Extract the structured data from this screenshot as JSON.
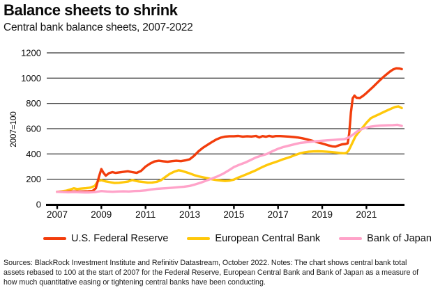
{
  "header": {
    "title": "Balance sheets to shrink",
    "subtitle": "Central bank balance sheets, 2007-2022"
  },
  "chart_data": {
    "type": "line",
    "title": "Balance sheets to shrink",
    "subtitle": "Central bank balance sheets, 2007-2022",
    "xlabel": "",
    "ylabel": "2007=100",
    "ylim": [
      0,
      1200
    ],
    "xlim": [
      2006.6,
      2022.75
    ],
    "yticks": [
      0,
      200,
      400,
      600,
      800,
      1000,
      1200
    ],
    "xticks": [
      2007,
      2009,
      2011,
      2013,
      2015,
      2017,
      2019,
      2021
    ],
    "grid": true,
    "legend_position": "bottom",
    "series": [
      {
        "name": "U.S. Federal Reserve",
        "color": "#f23d0c",
        "points": [
          [
            2007.0,
            100
          ],
          [
            2007.2,
            101
          ],
          [
            2007.4,
            100
          ],
          [
            2007.6,
            102
          ],
          [
            2007.8,
            103
          ],
          [
            2008.0,
            102
          ],
          [
            2008.2,
            103
          ],
          [
            2008.4,
            104
          ],
          [
            2008.6,
            107
          ],
          [
            2008.75,
            128
          ],
          [
            2008.9,
            225
          ],
          [
            2009.0,
            280
          ],
          [
            2009.1,
            250
          ],
          [
            2009.2,
            228
          ],
          [
            2009.35,
            248
          ],
          [
            2009.5,
            256
          ],
          [
            2009.65,
            250
          ],
          [
            2009.8,
            254
          ],
          [
            2010.0,
            258
          ],
          [
            2010.2,
            263
          ],
          [
            2010.4,
            256
          ],
          [
            2010.6,
            250
          ],
          [
            2010.8,
            266
          ],
          [
            2011.0,
            300
          ],
          [
            2011.2,
            323
          ],
          [
            2011.4,
            340
          ],
          [
            2011.6,
            346
          ],
          [
            2011.8,
            342
          ],
          [
            2012.0,
            338
          ],
          [
            2012.2,
            343
          ],
          [
            2012.4,
            346
          ],
          [
            2012.6,
            343
          ],
          [
            2012.8,
            349
          ],
          [
            2013.0,
            358
          ],
          [
            2013.2,
            386
          ],
          [
            2013.4,
            421
          ],
          [
            2013.6,
            449
          ],
          [
            2013.8,
            472
          ],
          [
            2014.0,
            494
          ],
          [
            2014.2,
            514
          ],
          [
            2014.4,
            529
          ],
          [
            2014.6,
            537
          ],
          [
            2014.8,
            540
          ],
          [
            2015.0,
            540
          ],
          [
            2015.2,
            542
          ],
          [
            2015.4,
            537
          ],
          [
            2015.6,
            540
          ],
          [
            2015.8,
            538
          ],
          [
            2016.0,
            542
          ],
          [
            2016.15,
            531
          ],
          [
            2016.3,
            541
          ],
          [
            2016.45,
            536
          ],
          [
            2016.6,
            543
          ],
          [
            2016.75,
            537
          ],
          [
            2016.9,
            541
          ],
          [
            2017.1,
            541
          ],
          [
            2017.3,
            539
          ],
          [
            2017.5,
            537
          ],
          [
            2017.7,
            534
          ],
          [
            2017.9,
            530
          ],
          [
            2018.1,
            524
          ],
          [
            2018.3,
            516
          ],
          [
            2018.5,
            507
          ],
          [
            2018.7,
            497
          ],
          [
            2018.9,
            487
          ],
          [
            2019.1,
            477
          ],
          [
            2019.3,
            467
          ],
          [
            2019.45,
            460
          ],
          [
            2019.6,
            458
          ],
          [
            2019.75,
            468
          ],
          [
            2019.9,
            476
          ],
          [
            2020.05,
            479
          ],
          [
            2020.15,
            484
          ],
          [
            2020.22,
            560
          ],
          [
            2020.3,
            730
          ],
          [
            2020.38,
            840
          ],
          [
            2020.46,
            862
          ],
          [
            2020.55,
            845
          ],
          [
            2020.7,
            843
          ],
          [
            2020.85,
            860
          ],
          [
            2021.0,
            882
          ],
          [
            2021.15,
            906
          ],
          [
            2021.3,
            930
          ],
          [
            2021.45,
            956
          ],
          [
            2021.6,
            982
          ],
          [
            2021.75,
            1006
          ],
          [
            2021.9,
            1028
          ],
          [
            2022.05,
            1050
          ],
          [
            2022.2,
            1068
          ],
          [
            2022.35,
            1078
          ],
          [
            2022.5,
            1076
          ],
          [
            2022.6,
            1071
          ]
        ]
      },
      {
        "name": "European Central Bank",
        "color": "#ffc80a",
        "points": [
          [
            2007.0,
            100
          ],
          [
            2007.2,
            104
          ],
          [
            2007.4,
            109
          ],
          [
            2007.6,
            119
          ],
          [
            2007.75,
            128
          ],
          [
            2007.9,
            122
          ],
          [
            2008.1,
            126
          ],
          [
            2008.3,
            129
          ],
          [
            2008.5,
            134
          ],
          [
            2008.7,
            147
          ],
          [
            2008.85,
            186
          ],
          [
            2009.0,
            192
          ],
          [
            2009.2,
            183
          ],
          [
            2009.4,
            176
          ],
          [
            2009.6,
            170
          ],
          [
            2009.8,
            172
          ],
          [
            2010.0,
            176
          ],
          [
            2010.2,
            181
          ],
          [
            2010.4,
            194
          ],
          [
            2010.55,
            187
          ],
          [
            2010.7,
            182
          ],
          [
            2010.9,
            178
          ],
          [
            2011.1,
            173
          ],
          [
            2011.3,
            174
          ],
          [
            2011.5,
            179
          ],
          [
            2011.7,
            192
          ],
          [
            2011.9,
            218
          ],
          [
            2012.1,
            243
          ],
          [
            2012.3,
            260
          ],
          [
            2012.5,
            271
          ],
          [
            2012.65,
            266
          ],
          [
            2012.8,
            257
          ],
          [
            2013.0,
            246
          ],
          [
            2013.2,
            233
          ],
          [
            2013.4,
            223
          ],
          [
            2013.6,
            215
          ],
          [
            2013.8,
            208
          ],
          [
            2014.0,
            200
          ],
          [
            2014.2,
            194
          ],
          [
            2014.4,
            190
          ],
          [
            2014.6,
            186
          ],
          [
            2014.8,
            189
          ],
          [
            2015.0,
            197
          ],
          [
            2015.2,
            213
          ],
          [
            2015.4,
            227
          ],
          [
            2015.6,
            241
          ],
          [
            2015.8,
            256
          ],
          [
            2016.0,
            271
          ],
          [
            2016.2,
            289
          ],
          [
            2016.4,
            305
          ],
          [
            2016.6,
            319
          ],
          [
            2016.8,
            331
          ],
          [
            2017.0,
            343
          ],
          [
            2017.2,
            356
          ],
          [
            2017.4,
            367
          ],
          [
            2017.6,
            379
          ],
          [
            2017.8,
            393
          ],
          [
            2018.0,
            405
          ],
          [
            2018.2,
            413
          ],
          [
            2018.4,
            418
          ],
          [
            2018.6,
            420
          ],
          [
            2018.8,
            421
          ],
          [
            2019.0,
            420
          ],
          [
            2019.2,
            418
          ],
          [
            2019.4,
            415
          ],
          [
            2019.6,
            412
          ],
          [
            2019.8,
            408
          ],
          [
            2020.0,
            405
          ],
          [
            2020.1,
            409
          ],
          [
            2020.2,
            428
          ],
          [
            2020.35,
            482
          ],
          [
            2020.5,
            537
          ],
          [
            2020.65,
            572
          ],
          [
            2020.8,
            602
          ],
          [
            2021.0,
            646
          ],
          [
            2021.2,
            683
          ],
          [
            2021.4,
            700
          ],
          [
            2021.6,
            716
          ],
          [
            2021.8,
            733
          ],
          [
            2022.0,
            749
          ],
          [
            2022.15,
            761
          ],
          [
            2022.3,
            772
          ],
          [
            2022.45,
            776
          ],
          [
            2022.6,
            763
          ]
        ]
      },
      {
        "name": "Bank of Japan",
        "color": "#ffa3c9",
        "points": [
          [
            2007.0,
            100
          ],
          [
            2007.25,
            99
          ],
          [
            2007.5,
            97
          ],
          [
            2007.75,
            98
          ],
          [
            2008.0,
            97
          ],
          [
            2008.25,
            95
          ],
          [
            2008.5,
            96
          ],
          [
            2008.75,
            99
          ],
          [
            2009.0,
            106
          ],
          [
            2009.25,
            103
          ],
          [
            2009.5,
            101
          ],
          [
            2009.75,
            103
          ],
          [
            2010.0,
            104
          ],
          [
            2010.25,
            103
          ],
          [
            2010.5,
            106
          ],
          [
            2010.75,
            108
          ],
          [
            2011.0,
            112
          ],
          [
            2011.25,
            119
          ],
          [
            2011.5,
            124
          ],
          [
            2011.75,
            127
          ],
          [
            2012.0,
            130
          ],
          [
            2012.25,
            133
          ],
          [
            2012.5,
            137
          ],
          [
            2012.75,
            141
          ],
          [
            2013.0,
            147
          ],
          [
            2013.25,
            159
          ],
          [
            2013.5,
            173
          ],
          [
            2013.75,
            189
          ],
          [
            2014.0,
            205
          ],
          [
            2014.25,
            222
          ],
          [
            2014.5,
            242
          ],
          [
            2014.75,
            268
          ],
          [
            2015.0,
            296
          ],
          [
            2015.25,
            315
          ],
          [
            2015.5,
            331
          ],
          [
            2015.75,
            351
          ],
          [
            2016.0,
            372
          ],
          [
            2016.25,
            387
          ],
          [
            2016.5,
            400
          ],
          [
            2016.75,
            422
          ],
          [
            2017.0,
            441
          ],
          [
            2017.25,
            455
          ],
          [
            2017.5,
            466
          ],
          [
            2017.75,
            477
          ],
          [
            2018.0,
            487
          ],
          [
            2018.25,
            492
          ],
          [
            2018.5,
            497
          ],
          [
            2018.75,
            501
          ],
          [
            2019.0,
            505
          ],
          [
            2019.25,
            508
          ],
          [
            2019.5,
            511
          ],
          [
            2019.75,
            514
          ],
          [
            2020.0,
            517
          ],
          [
            2020.2,
            530
          ],
          [
            2020.4,
            554
          ],
          [
            2020.6,
            580
          ],
          [
            2020.8,
            597
          ],
          [
            2021.0,
            609
          ],
          [
            2021.2,
            616
          ],
          [
            2021.4,
            621
          ],
          [
            2021.6,
            624
          ],
          [
            2021.8,
            626
          ],
          [
            2022.0,
            627
          ],
          [
            2022.2,
            628
          ],
          [
            2022.4,
            631
          ],
          [
            2022.6,
            622
          ]
        ]
      }
    ]
  },
  "footer": {
    "text": "Sources: BlackRock Investment Institute and Refinitiv Datastream, October 2022. Notes: The chart shows central bank total assets rebased to 100 at the start of 2007 for the Federal Reserve, European Central Bank and Bank of Japan as a measure of how much quantitative easing or tightening central banks have been conducting."
  }
}
